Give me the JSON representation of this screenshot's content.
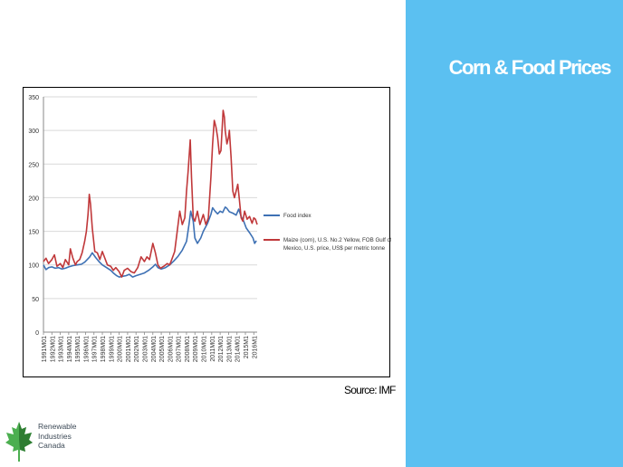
{
  "slide": {
    "title": "Corn & Food Prices",
    "source": "Source: IMF"
  },
  "logo": {
    "line1": "Renewable",
    "line2": "Industries",
    "line3": "Canada"
  },
  "colors": {
    "panel": "#5bc0f1",
    "food": "#3e71b4",
    "maize": "#c0383a"
  },
  "chart_data": {
    "type": "line",
    "title": "",
    "xlabel": "",
    "ylabel": "",
    "ylim": [
      0,
      350
    ],
    "yticks": [
      0,
      50,
      100,
      150,
      200,
      250,
      300,
      350
    ],
    "x_tick_labels": [
      "1991M01",
      "1992M01",
      "1993M01",
      "1994M01",
      "1995M01",
      "1996M01",
      "1997M01",
      "1998M01",
      "1999M01",
      "2000M01",
      "2001M01",
      "2002M01",
      "2003M01",
      "2004M01",
      "2005M01",
      "2006M01",
      "2007M01",
      "2008M01",
      "2009M01",
      "2010M01",
      "2011M01",
      "2012M01",
      "2013M01",
      "2014M01",
      "2015M1",
      "2016M1"
    ],
    "x_range": [
      1991.0,
      2016.4
    ],
    "legend_position": "right",
    "series": [
      {
        "name": "Food index",
        "color": "#3e71b4",
        "x": [
          1991.0,
          1991.3,
          1991.6,
          1992.0,
          1992.4,
          1992.8,
          1993.2,
          1993.6,
          1994.0,
          1994.5,
          1995.0,
          1995.5,
          1995.9,
          1996.2,
          1996.5,
          1996.8,
          1997.2,
          1997.6,
          1998.0,
          1998.5,
          1999.0,
          1999.3,
          1999.7,
          2000.0,
          2000.4,
          2000.8,
          2001.2,
          2001.6,
          2002.0,
          2002.5,
          2003.0,
          2003.5,
          2004.0,
          2004.3,
          2004.6,
          2005.0,
          2005.5,
          2006.0,
          2006.5,
          2007.0,
          2007.5,
          2008.0,
          2008.3,
          2008.5,
          2008.8,
          2009.0,
          2009.3,
          2009.7,
          2010.0,
          2010.5,
          2010.9,
          2011.1,
          2011.4,
          2011.7,
          2012.0,
          2012.3,
          2012.6,
          2012.8,
          2013.1,
          2013.5,
          2013.9,
          2014.2,
          2014.5,
          2014.8,
          2015.1,
          2015.5,
          2015.9,
          2016.1,
          2016.3
        ],
        "values": [
          100,
          93,
          96,
          97,
          95,
          96,
          94,
          95,
          97,
          99,
          100,
          101,
          104,
          108,
          112,
          118,
          111,
          105,
          100,
          96,
          92,
          88,
          84,
          82,
          83,
          84,
          86,
          82,
          84,
          86,
          88,
          92,
          97,
          101,
          96,
          94,
          96,
          100,
          106,
          113,
          122,
          135,
          160,
          180,
          165,
          140,
          132,
          140,
          150,
          162,
          175,
          185,
          180,
          176,
          180,
          178,
          186,
          184,
          179,
          177,
          174,
          183,
          172,
          165,
          155,
          148,
          140,
          132,
          136
        ]
      },
      {
        "name": "Maize (corn), U.S. No.2 Yellow, FOB Gulf of Mexico, U.S. price, US$ per metric tonne",
        "color": "#c0383a",
        "x": [
          1991.0,
          1991.3,
          1991.6,
          1992.0,
          1992.3,
          1992.6,
          1993.0,
          1993.3,
          1993.6,
          1994.0,
          1994.2,
          1994.5,
          1994.8,
          1995.0,
          1995.3,
          1995.6,
          1995.9,
          1996.1,
          1996.3,
          1996.45,
          1996.6,
          1996.8,
          1997.1,
          1997.4,
          1997.7,
          1998.0,
          1998.3,
          1998.6,
          1999.0,
          1999.3,
          1999.6,
          2000.0,
          2000.3,
          2000.6,
          2001.0,
          2001.4,
          2001.8,
          2002.2,
          2002.6,
          2003.0,
          2003.3,
          2003.6,
          2004.0,
          2004.3,
          2004.6,
          2004.9,
          2005.3,
          2005.7,
          2006.0,
          2006.3,
          2006.6,
          2006.9,
          2007.2,
          2007.5,
          2007.8,
          2008.0,
          2008.2,
          2008.45,
          2008.6,
          2008.8,
          2009.0,
          2009.3,
          2009.6,
          2010.0,
          2010.3,
          2010.6,
          2010.9,
          2011.1,
          2011.3,
          2011.5,
          2011.7,
          2011.9,
          2012.1,
          2012.35,
          2012.5,
          2012.6,
          2012.8,
          2013.0,
          2013.1,
          2013.3,
          2013.5,
          2013.7,
          2013.9,
          2014.1,
          2014.3,
          2014.5,
          2014.7,
          2014.9,
          2015.2,
          2015.5,
          2015.8,
          2016.0,
          2016.2,
          2016.4
        ],
        "values": [
          105,
          110,
          102,
          108,
          115,
          98,
          102,
          96,
          108,
          100,
          124,
          110,
          100,
          105,
          108,
          118,
          135,
          150,
          175,
          205,
          190,
          155,
          120,
          118,
          108,
          120,
          110,
          100,
          98,
          92,
          96,
          90,
          82,
          92,
          95,
          90,
          88,
          96,
          112,
          105,
          112,
          108,
          132,
          118,
          100,
          95,
          98,
          102,
          100,
          110,
          120,
          150,
          180,
          160,
          170,
          210,
          240,
          286,
          230,
          170,
          165,
          180,
          160,
          175,
          160,
          170,
          230,
          280,
          315,
          305,
          290,
          265,
          270,
          330,
          320,
          300,
          280,
          290,
          300,
          260,
          210,
          200,
          210,
          220,
          195,
          170,
          165,
          180,
          168,
          172,
          162,
          170,
          168,
          160
        ]
      }
    ]
  }
}
